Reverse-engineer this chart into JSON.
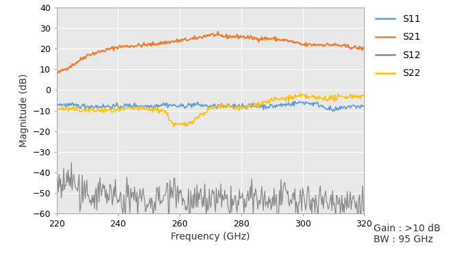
{
  "title": "",
  "xlabel": "Frequency (GHz)",
  "ylabel": "Magnitude (dB)",
  "xlim": [
    220,
    320
  ],
  "ylim": [
    -60,
    40
  ],
  "yticks": [
    -60,
    -50,
    -40,
    -30,
    -20,
    -10,
    0,
    10,
    20,
    30,
    40
  ],
  "xticks": [
    220,
    240,
    260,
    280,
    300,
    320
  ],
  "legend_labels": [
    "S11",
    "S21",
    "S12",
    "S22"
  ],
  "colors": {
    "S11": "#5B9BD5",
    "S21": "#ED7D31",
    "S12": "#888888",
    "S22": "#FFC000"
  },
  "annotation_text": "Gain : >10 dB\nBW : 95 GHz",
  "background_color": "#FFFFFF",
  "plot_bg_color": "#E8E8E8",
  "grid_color": "#FFFFFF"
}
